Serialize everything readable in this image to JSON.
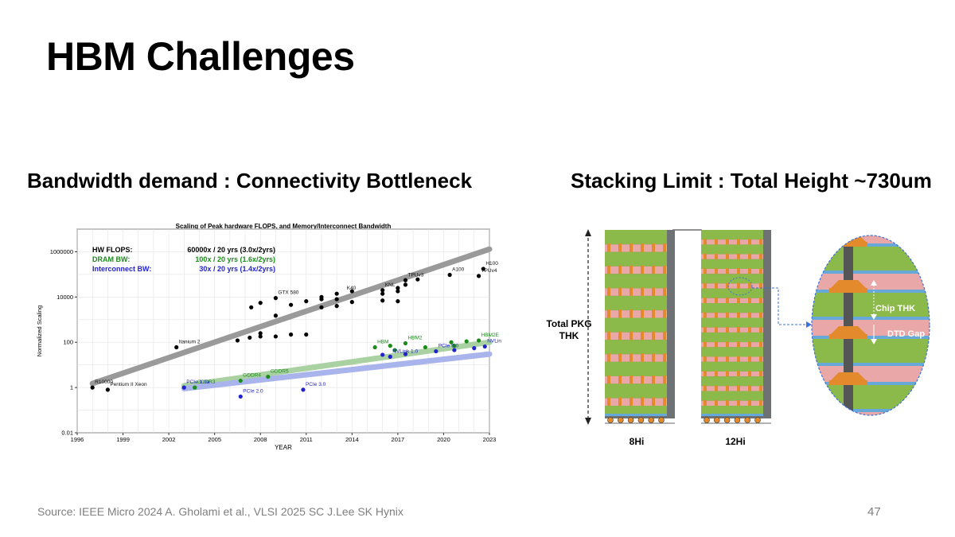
{
  "slide": {
    "title": "HBM Challenges",
    "left_heading": "Bandwidth demand : Connectivity Bottleneck",
    "right_heading": "Stacking Limit : Total Height ~730um",
    "source": "Source: IEEE Micro 2024 A. Gholami et al., VLSI 2025 SC J.Lee SK Hynix",
    "page_number": "47"
  },
  "chart_data": {
    "type": "scatter",
    "title": "Scaling of Peak hardware FLOPS, and Memory/Interconnect Bandwidth",
    "xlabel": "YEAR",
    "ylabel": "Normalized Scaling",
    "xlim": [
      1996,
      2023
    ],
    "ylim": [
      0.01,
      10000000
    ],
    "yscale": "log",
    "x_ticks": [
      "1996",
      "1999",
      "2002",
      "2005",
      "2008",
      "2011",
      "2014",
      "2017",
      "2020",
      "2023"
    ],
    "y_ticks": [
      "0.01",
      "1",
      "100",
      "10000",
      "1000000"
    ],
    "grid": true,
    "legend": [
      {
        "label": "HW FLOPS:",
        "text": "60000x / 20 yrs (3.0x/2yrs)",
        "color": "#000000"
      },
      {
        "label": "DRAM BW:",
        "text": "100x / 20 yrs (1.6x/2yrs)",
        "color": "#1a8c1a"
      },
      {
        "label": "Interconnect BW:",
        "text": "30x / 20 yrs (1.4x/2yrs)",
        "color": "#2222cc"
      }
    ],
    "series": [
      {
        "name": "HW FLOPS",
        "color": "#000000",
        "trend": [
          [
            1997,
            1.5
          ],
          [
            2023,
            1300000
          ]
        ],
        "points": [
          [
            1997,
            1
          ],
          [
            1998,
            0.8
          ],
          [
            2002.5,
            60
          ],
          [
            2006.5,
            120
          ],
          [
            2007.3,
            160
          ],
          [
            2007.4,
            3500
          ],
          [
            2008,
            250
          ],
          [
            2008,
            5500
          ],
          [
            2008,
            180
          ],
          [
            2009,
            1500
          ],
          [
            2009,
            180
          ],
          [
            2009,
            9000
          ],
          [
            2010,
            4500
          ],
          [
            2010,
            220
          ],
          [
            2011,
            6500
          ],
          [
            2011,
            220
          ],
          [
            2012,
            10000
          ],
          [
            2012,
            3500
          ],
          [
            2012,
            8000
          ],
          [
            2013,
            4000
          ],
          [
            2013,
            14000
          ],
          [
            2013,
            8000
          ],
          [
            2014,
            18000
          ],
          [
            2014,
            6000
          ],
          [
            2016,
            7000
          ],
          [
            2016,
            20000
          ],
          [
            2016,
            14000
          ],
          [
            2017,
            18000
          ],
          [
            2017,
            25000
          ],
          [
            2017,
            6500
          ],
          [
            2017.5,
            35000
          ],
          [
            2017.5,
            55000
          ],
          [
            2018.3,
            60000
          ],
          [
            2020.4,
            95000
          ],
          [
            2022.3,
            85000
          ],
          [
            2022.6,
            175000
          ]
        ],
        "labels": [
          {
            "text": "R10000",
            "x": 1997,
            "y": 1
          },
          {
            "text": "Pentium II Xeon",
            "x": 1998,
            "y": 0.8
          },
          {
            "text": "Itanium 2",
            "x": 2002.5,
            "y": 60
          },
          {
            "text": "GTX 580",
            "x": 2009,
            "y": 9000
          },
          {
            "text": "K40",
            "x": 2013.5,
            "y": 14000
          },
          {
            "text": "KNL",
            "x": 2016,
            "y": 20000
          },
          {
            "text": "TPUv3",
            "x": 2017.5,
            "y": 55000
          },
          {
            "text": "A100",
            "x": 2020.4,
            "y": 95000
          },
          {
            "text": "H100",
            "x": 2022.6,
            "y": 175000
          },
          {
            "text": "TPUv4",
            "x": 2022.3,
            "y": 85000
          }
        ]
      },
      {
        "name": "DRAM BW",
        "color": "#1a8c1a",
        "trend": [
          [
            2003,
            1.2
          ],
          [
            2023,
            100
          ]
        ],
        "points": [
          [
            2003.7,
            1
          ],
          [
            2006.7,
            2
          ],
          [
            2008.5,
            3
          ],
          [
            2015.5,
            60
          ],
          [
            2016.5,
            70
          ],
          [
            2017.5,
            90
          ],
          [
            2018.8,
            60
          ],
          [
            2020.5,
            100
          ],
          [
            2020.7,
            70
          ],
          [
            2021.5,
            110
          ],
          [
            2022.3,
            120
          ],
          [
            2016.8,
            45
          ]
        ],
        "labels": [
          {
            "text": "GDDR3",
            "x": 2003.7,
            "y": 1
          },
          {
            "text": "GDDR4",
            "x": 2006.7,
            "y": 2
          },
          {
            "text": "GDDR5",
            "x": 2008.5,
            "y": 3
          },
          {
            "text": "HBM",
            "x": 2015.5,
            "y": 60
          },
          {
            "text": "HBM2",
            "x": 2017.5,
            "y": 90
          },
          {
            "text": "HBM2E",
            "x": 2022.3,
            "y": 120
          }
        ]
      },
      {
        "name": "Interconnect BW",
        "color": "#2222cc",
        "trend": [
          [
            2003,
            0.9
          ],
          [
            2023,
            30
          ]
        ],
        "points": [
          [
            2003,
            1
          ],
          [
            2006.7,
            0.4
          ],
          [
            2010.8,
            0.8
          ],
          [
            2016,
            28
          ],
          [
            2016.5,
            23
          ],
          [
            2017.5,
            30
          ],
          [
            2019.5,
            40
          ],
          [
            2020.7,
            45
          ],
          [
            2022,
            55
          ],
          [
            2022.7,
            65
          ]
        ],
        "labels": [
          {
            "text": "PCIe 1.0a",
            "x": 2003,
            "y": 1
          },
          {
            "text": "PCIe 2.0",
            "x": 2006.7,
            "y": 0.4
          },
          {
            "text": "PCIe 3.0",
            "x": 2010.8,
            "y": 0.8
          },
          {
            "text": "NVLink 1.0",
            "x": 2016.5,
            "y": 23
          },
          {
            "text": "PCIe 5.0",
            "x": 2019.5,
            "y": 40
          },
          {
            "text": "NVLink 4.0",
            "x": 2022.7,
            "y": 65
          }
        ]
      }
    ]
  },
  "stack_figure": {
    "total_label_line1": "Total PKG",
    "total_label_line2": "THK",
    "stack_8_label": "8Hi",
    "stack_12_label": "12Hi",
    "stack_8_dies": 8,
    "stack_12_dies": 12,
    "zoom_label_chip": "Chip THK",
    "zoom_label_gap": "DTD Gap",
    "colors": {
      "die_green": "#8cba4a",
      "gap_pink": "#eaa7a7",
      "mold_grey": "#6f7275",
      "bump_orange": "#e38a2c",
      "pad_blue": "#66a9d9",
      "arrow_blue": "#3a72d8"
    }
  }
}
